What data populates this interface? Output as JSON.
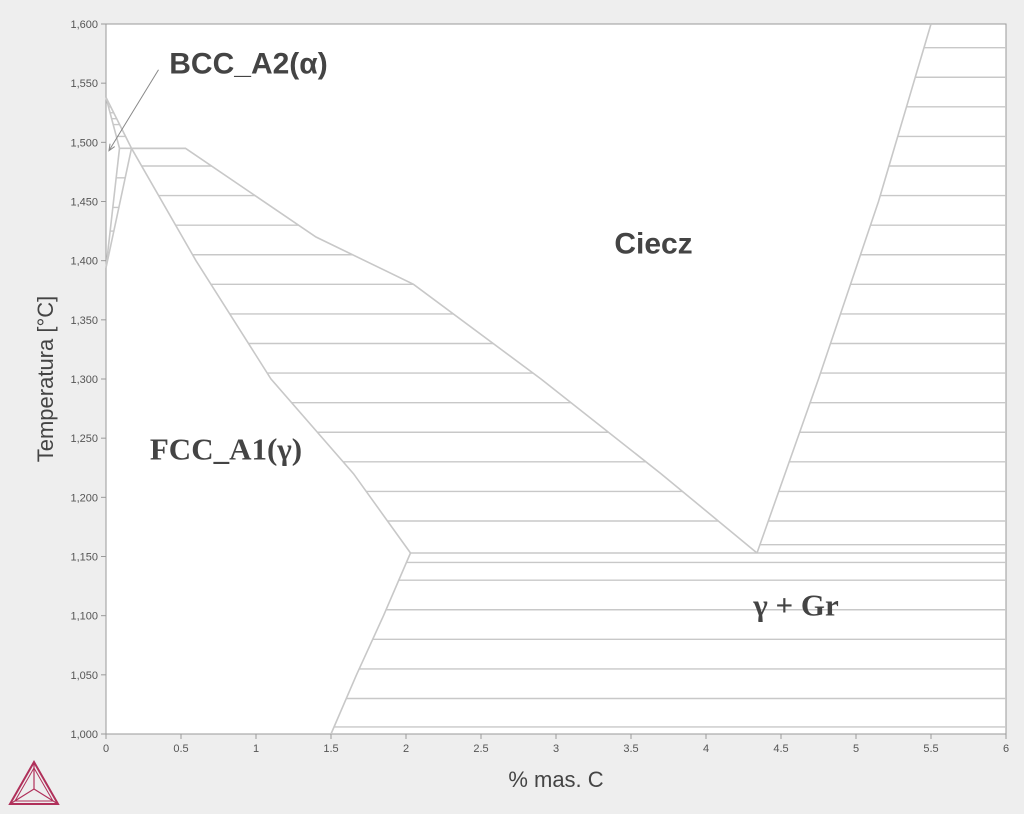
{
  "chart_data": {
    "type": "line",
    "title": "",
    "xlabel": "% mas. C",
    "ylabel": "Temperatura [°C]",
    "xlim": [
      0,
      6
    ],
    "ylim": [
      1000,
      1600
    ],
    "x_ticks": [
      "0",
      "0.5",
      "1",
      "1.5",
      "2",
      "2.5",
      "3",
      "3.5",
      "4",
      "4.5",
      "5",
      "5.5",
      "6"
    ],
    "y_ticks": [
      "1,000",
      "1,050",
      "1,100",
      "1,150",
      "1,200",
      "1,250",
      "1,300",
      "1,350",
      "1,400",
      "1,450",
      "1,500",
      "1,550",
      "1,600"
    ],
    "grid": false,
    "series": [
      {
        "points": [
          [
            0,
            1538
          ],
          [
            0.09,
            1495
          ]
        ]
      },
      {
        "points": [
          [
            0,
            1538
          ],
          [
            0.17,
            1495
          ]
        ]
      },
      {
        "points": [
          [
            0,
            1394
          ],
          [
            0.09,
            1495
          ]
        ]
      },
      {
        "points": [
          [
            0,
            1394
          ],
          [
            0.17,
            1495
          ]
        ]
      },
      {
        "points": [
          [
            0.09,
            1495
          ],
          [
            0.53,
            1495
          ]
        ]
      },
      {
        "points": [
          [
            0.17,
            1495
          ],
          [
            0.53,
            1495
          ],
          [
            1.4,
            1420
          ],
          [
            2.05,
            1380
          ],
          [
            2.9,
            1300
          ],
          [
            3.7,
            1220
          ],
          [
            4.34,
            1153
          ]
        ]
      },
      {
        "points": [
          [
            0.17,
            1495
          ],
          [
            0.6,
            1400
          ],
          [
            1.1,
            1300
          ],
          [
            1.65,
            1220
          ],
          [
            2.03,
            1153
          ]
        ]
      },
      {
        "points": [
          [
            2.03,
            1153
          ],
          [
            6,
            1153
          ]
        ]
      },
      {
        "points": [
          [
            2.03,
            1153
          ],
          [
            1.85,
            1100
          ],
          [
            1.67,
            1050
          ],
          [
            1.5,
            1000
          ]
        ]
      },
      {
        "points": [
          [
            4.34,
            1153
          ],
          [
            4.75,
            1300
          ],
          [
            5.15,
            1450
          ],
          [
            5.5,
            1600
          ]
        ]
      }
    ],
    "tielines": [
      {
        "region": "bcc-liquid",
        "y": [
          1505,
          1515,
          1520,
          1525,
          1530
        ]
      },
      {
        "region": "bcc-fcc",
        "y": [
          1425,
          1445,
          1470
        ]
      },
      {
        "region": "fcc-liquid",
        "y": [
          1480,
          1455,
          1430,
          1405,
          1380,
          1355,
          1330,
          1305,
          1280,
          1255,
          1230,
          1205,
          1180
        ]
      },
      {
        "region": "liquid-graphite",
        "y": [
          1160,
          1180,
          1205,
          1230,
          1255,
          1280,
          1305,
          1330,
          1355,
          1380,
          1405,
          1430,
          1455,
          1480,
          1505,
          1530,
          1555,
          1580
        ]
      },
      {
        "region": "fcc-graphite",
        "y": [
          1006,
          1030,
          1055,
          1080,
          1105,
          1130,
          1145
        ]
      }
    ],
    "annotations": [
      {
        "text": "BCC_A2(α)",
        "x": 0.95,
        "y": 1558,
        "arrow_to": [
          0.02,
          1493
        ]
      },
      {
        "text": "Ciecz",
        "x": 3.65,
        "y": 1406
      },
      {
        "text": "FCC_A1(γ)",
        "x": 0.8,
        "y": 1232
      },
      {
        "text": "γ + Gr",
        "x": 4.6,
        "y": 1100
      }
    ],
    "colors": {
      "boundary": "#c8c8c8",
      "label": "#444444",
      "plot_background": "#ffffff",
      "page_background": "#eeeeee",
      "logo": "#b0305a"
    }
  },
  "logo": {
    "icon": "thermo-calc-triangle-icon"
  }
}
